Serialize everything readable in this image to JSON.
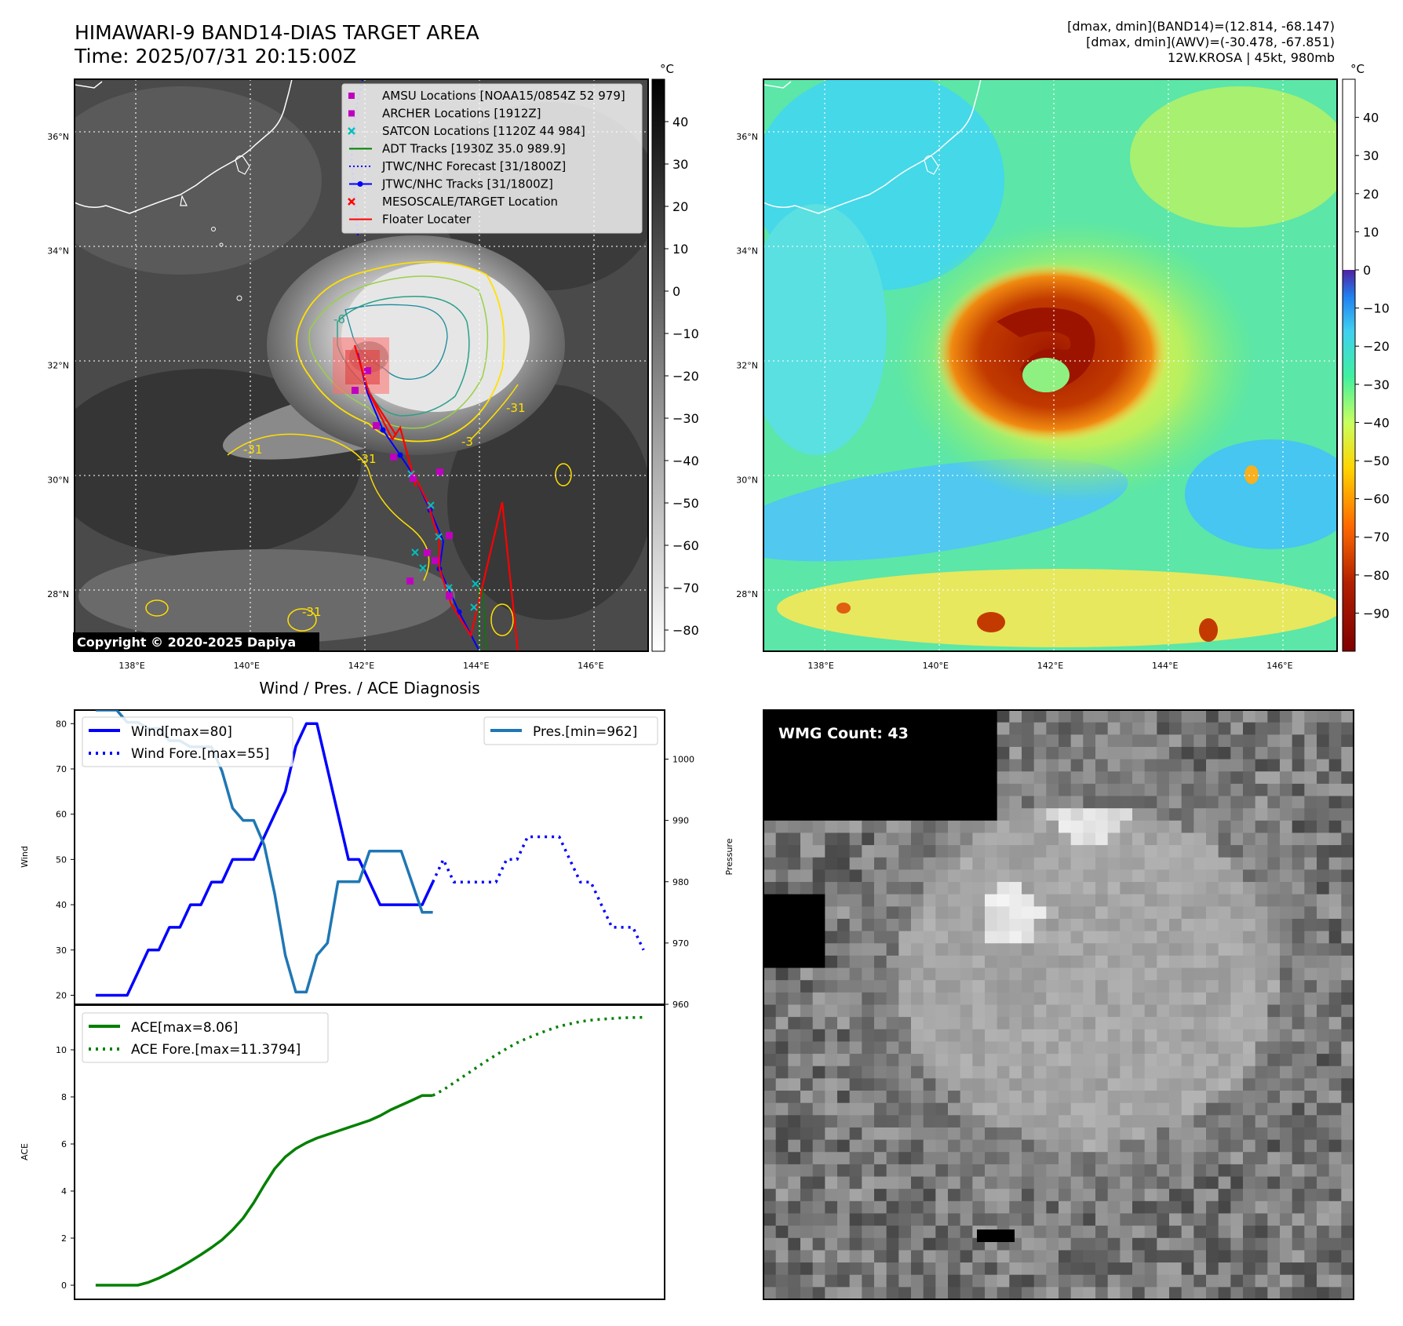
{
  "header": {
    "title": "HIMAWARI-9 BAND14-DIAS TARGET AREA",
    "time": "Time: 2025/07/31 20:15:00Z",
    "stats_line1": "[dmax, dmin](BAND14)=(12.814, -68.147)",
    "stats_line2": "[dmax, dmin](AWV)=(-30.478, -67.851)",
    "stats_line3": "12W.KROSA | 45kt, 980mb"
  },
  "map": {
    "lat_labels": [
      "36°N",
      "34°N",
      "32°N",
      "30°N",
      "28°N"
    ],
    "lat_values": [
      36,
      34,
      32,
      30,
      28
    ],
    "lon_labels": [
      "138°E",
      "140°E",
      "142°E",
      "144°E",
      "146°E"
    ],
    "lon_values": [
      138,
      140,
      142,
      144,
      146
    ],
    "lon_range": [
      137,
      147
    ],
    "lat_range": [
      27,
      37
    ],
    "copyright": "Copyright © 2020-2025 Dapiya",
    "legend": [
      {
        "label": "AMSU Locations [NOAA15/0854Z 52 979]",
        "symbol": "square",
        "color": "#bf00bf"
      },
      {
        "label": "ARCHER Locations [1912Z]",
        "symbol": "square",
        "color": "#bf00bf"
      },
      {
        "label": "SATCON Locations [1120Z 44 984]",
        "symbol": "x",
        "color": "#00bfbf"
      },
      {
        "label": "ADT Tracks [1930Z 35.0 989.9]",
        "symbol": "line",
        "color": "#008000"
      },
      {
        "label": "JTWC/NHC Forecast [31/1800Z]",
        "symbol": "dotted",
        "color": "#0000ff"
      },
      {
        "label": "JTWC/NHC Tracks [31/1800Z]",
        "symbol": "line-dot",
        "color": "#0000ff"
      },
      {
        "label": "MESOSCALE/TARGET Location",
        "symbol": "x",
        "color": "#ff0000"
      },
      {
        "label": "Floater Locater",
        "symbol": "line",
        "color": "#ff0000"
      }
    ],
    "contour_labels": [
      "-6",
      "-31",
      "-31",
      "-31",
      "-3",
      "-31"
    ]
  },
  "colorbar_left": {
    "unit": "°C",
    "ticks": [
      "40",
      "30",
      "20",
      "10",
      "0",
      "−10",
      "−20",
      "−30",
      "−40",
      "−50",
      "−60",
      "−70",
      "−80"
    ],
    "tick_values": [
      40,
      30,
      20,
      10,
      0,
      -10,
      -20,
      -30,
      -40,
      -50,
      -60,
      -70,
      -80
    ],
    "range": [
      -85,
      50
    ]
  },
  "colorbar_right": {
    "unit": "°C",
    "ticks": [
      "40",
      "30",
      "20",
      "10",
      "0",
      "−10",
      "−20",
      "−30",
      "−40",
      "−50",
      "−60",
      "−70",
      "−80",
      "−90"
    ],
    "tick_values": [
      40,
      30,
      20,
      10,
      0,
      -10,
      -20,
      -30,
      -40,
      -50,
      -60,
      -70,
      -80,
      -90
    ],
    "range": [
      -100,
      50
    ]
  },
  "diagnosis": {
    "title": "Wind / Pres. / ACE Diagnosis",
    "wind_ylabel": "Wind",
    "pres_ylabel": "Pressure",
    "ace_ylabel": "ACE",
    "wind_yticks": [
      "80",
      "70",
      "60",
      "50",
      "40",
      "30",
      "20"
    ],
    "pres_yticks": [
      "1000",
      "990",
      "980",
      "970",
      "960"
    ],
    "ace_yticks": [
      "10",
      "8",
      "6",
      "4",
      "2",
      "0"
    ],
    "legend_wind": "Wind[max=80]",
    "legend_wind_fore": "Wind Fore.[max=55]",
    "legend_pres": "Pres.[min=962]",
    "legend_ace": "ACE[max=8.06]",
    "legend_ace_fore": "ACE Fore.[max=11.3794]"
  },
  "wmg": {
    "label": "WMG Count: 43"
  },
  "chart_data": [
    {
      "type": "line",
      "title": "Wind / Pres. / ACE Diagnosis",
      "ylabel": "Wind",
      "ylim": [
        18,
        83
      ],
      "xlim": [
        -2,
        54
      ],
      "series": [
        {
          "name": "Wind[max=80]",
          "color": "#0000ff",
          "style": "solid",
          "x": [
            0,
            1,
            2,
            3,
            4,
            5,
            6,
            7,
            8,
            9,
            10,
            11,
            12,
            13,
            14,
            15,
            16,
            17,
            18,
            19,
            20,
            21,
            22,
            23,
            24,
            25,
            26,
            27,
            28,
            29,
            30,
            31,
            32
          ],
          "y": [
            20,
            20,
            20,
            20,
            25,
            30,
            30,
            35,
            35,
            40,
            40,
            45,
            45,
            50,
            50,
            50,
            55,
            60,
            65,
            75,
            80,
            80,
            70,
            60,
            50,
            50,
            45,
            40,
            40,
            40,
            40,
            40,
            45
          ]
        },
        {
          "name": "Wind Fore.[max=55]",
          "color": "#0000ff",
          "style": "dotted",
          "x": [
            32,
            33,
            34,
            35,
            36,
            37,
            38,
            39,
            40,
            41,
            42,
            43,
            44,
            45,
            46,
            47,
            48,
            49,
            50,
            51,
            52
          ],
          "y": [
            45,
            50,
            45,
            45,
            45,
            45,
            45,
            50,
            50,
            55,
            55,
            55,
            55,
            50,
            45,
            45,
            40,
            35,
            35,
            35,
            30
          ]
        }
      ]
    },
    {
      "type": "line",
      "ylabel": "Pressure",
      "ylim": [
        960,
        1008
      ],
      "xlim": [
        -2,
        54
      ],
      "series": [
        {
          "name": "Pres.[min=962]",
          "color": "#1f77b4",
          "style": "solid",
          "x": [
            0,
            1,
            2,
            3,
            4,
            5,
            6,
            7,
            8,
            9,
            10,
            11,
            12,
            13,
            14,
            15,
            16,
            17,
            18,
            19,
            20,
            21,
            22,
            23,
            24,
            25,
            26,
            27,
            28,
            29,
            30,
            31,
            32
          ],
          "y": [
            1008,
            1008,
            1008,
            1006,
            1006,
            1005,
            1005,
            1003,
            1003,
            1002,
            1002,
            1002,
            998,
            992,
            990,
            990,
            986,
            978,
            968,
            962,
            962,
            968,
            970,
            980,
            980,
            980,
            985,
            985,
            985,
            985,
            980,
            975,
            975
          ]
        }
      ]
    },
    {
      "type": "line",
      "ylabel": "ACE",
      "ylim": [
        -0.6,
        11.9
      ],
      "xlim": [
        -2,
        54
      ],
      "series": [
        {
          "name": "ACE[max=8.06]",
          "color": "#008000",
          "style": "solid",
          "x": [
            0,
            1,
            2,
            3,
            4,
            5,
            6,
            7,
            8,
            9,
            10,
            11,
            12,
            13,
            14,
            15,
            16,
            17,
            18,
            19,
            20,
            21,
            22,
            23,
            24,
            25,
            26,
            27,
            28,
            29,
            30,
            31,
            32
          ],
          "y": [
            0,
            0,
            0,
            0,
            0,
            0.12,
            0.3,
            0.52,
            0.76,
            1.02,
            1.3,
            1.6,
            1.93,
            2.35,
            2.85,
            3.5,
            4.25,
            4.95,
            5.45,
            5.8,
            6.05,
            6.25,
            6.4,
            6.55,
            6.7,
            6.85,
            7.0,
            7.2,
            7.45,
            7.65,
            7.85,
            8.06,
            8.06
          ]
        },
        {
          "name": "ACE Fore.[max=11.3794]",
          "color": "#008000",
          "style": "dotted",
          "x": [
            32,
            33,
            34,
            35,
            36,
            37,
            38,
            39,
            40,
            41,
            42,
            43,
            44,
            45,
            46,
            47,
            48,
            49,
            50,
            51,
            52
          ],
          "y": [
            8.06,
            8.3,
            8.6,
            8.9,
            9.2,
            9.5,
            9.78,
            10.05,
            10.3,
            10.5,
            10.68,
            10.85,
            11.0,
            11.1,
            11.2,
            11.26,
            11.3,
            11.33,
            11.36,
            11.37,
            11.38
          ]
        }
      ]
    }
  ]
}
